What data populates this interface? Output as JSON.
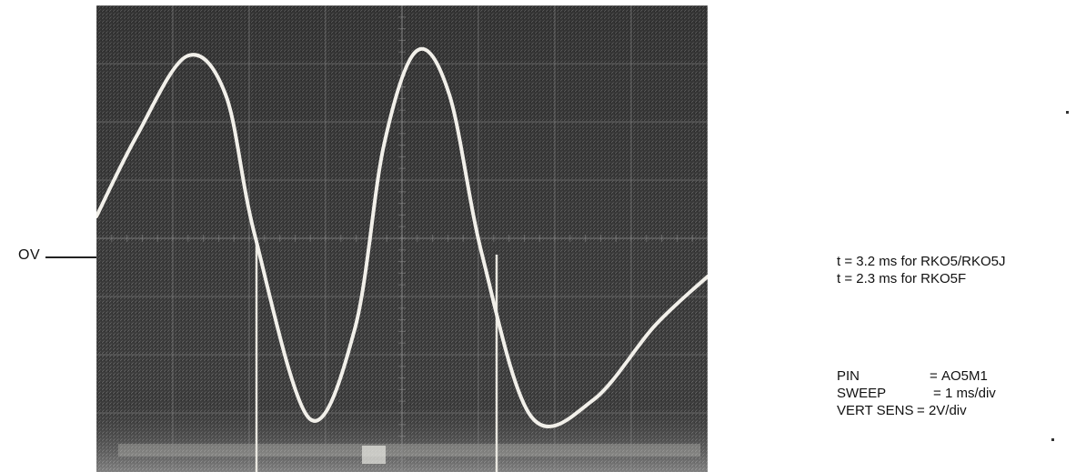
{
  "zero_label": "OV",
  "notes": [
    "t = 3.2 ms for RKO5/RKO5J",
    "t = 2.3 ms for RKO5F"
  ],
  "settings": [
    {
      "key": "PIN",
      "sep": "= ",
      "value": "AO5M1"
    },
    {
      "key": "SWEEP",
      "sep": "= ",
      "value": "1 ms/div"
    },
    {
      "key": "VERT SENS",
      "sep": "= ",
      "value": "2V/div"
    }
  ],
  "colors": {
    "screen": "#3a3a3a",
    "trace": "#f2f0ea",
    "grid": "#8a8a8a",
    "text": "#111111"
  }
}
